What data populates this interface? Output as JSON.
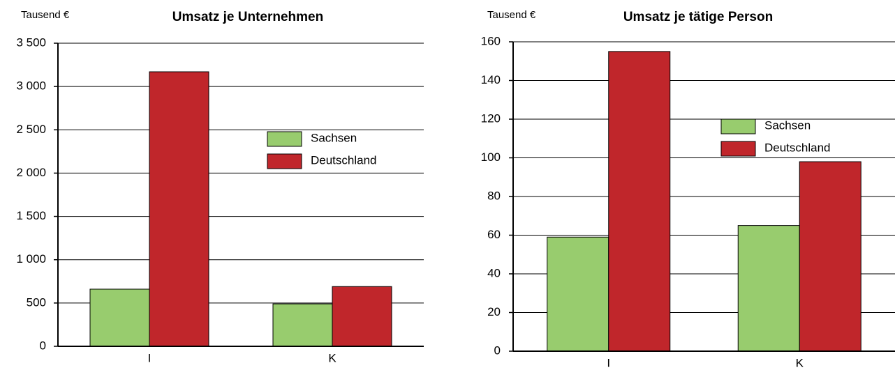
{
  "chart_data": [
    {
      "type": "bar",
      "title": "Umsatz je Unternehmen",
      "y_label": "Tausend €",
      "categories": [
        "I",
        "K"
      ],
      "series": [
        {
          "name": "Sachsen",
          "color": "#98cc6e",
          "values": [
            660,
            490
          ]
        },
        {
          "name": "Deutschland",
          "color": "#c0262b",
          "values": [
            3170,
            690
          ]
        }
      ],
      "ylim": [
        0,
        3500
      ],
      "yticks": [
        0,
        500,
        {
          "value": 1000,
          "label": "1 000"
        },
        {
          "value": 1500,
          "label": "1 500"
        },
        {
          "value": 2000,
          "label": "2 000"
        },
        {
          "value": 2500,
          "label": "2 500"
        },
        {
          "value": 3000,
          "label": "3 000"
        },
        {
          "value": 3500,
          "label": "3 500"
        }
      ],
      "grid": true,
      "legend": "right"
    },
    {
      "type": "bar",
      "title": "Umsatz je tätige Person",
      "y_label": "Tausend €",
      "categories": [
        "I",
        "K"
      ],
      "series": [
        {
          "name": "Sachsen",
          "color": "#98cc6e",
          "values": [
            59,
            65
          ]
        },
        {
          "name": "Deutschland",
          "color": "#c0262b",
          "values": [
            155,
            98
          ]
        }
      ],
      "ylim": [
        0,
        160
      ],
      "yticks": [
        0,
        20,
        40,
        60,
        80,
        100,
        120,
        140,
        160
      ],
      "grid": true,
      "legend": "right"
    }
  ]
}
